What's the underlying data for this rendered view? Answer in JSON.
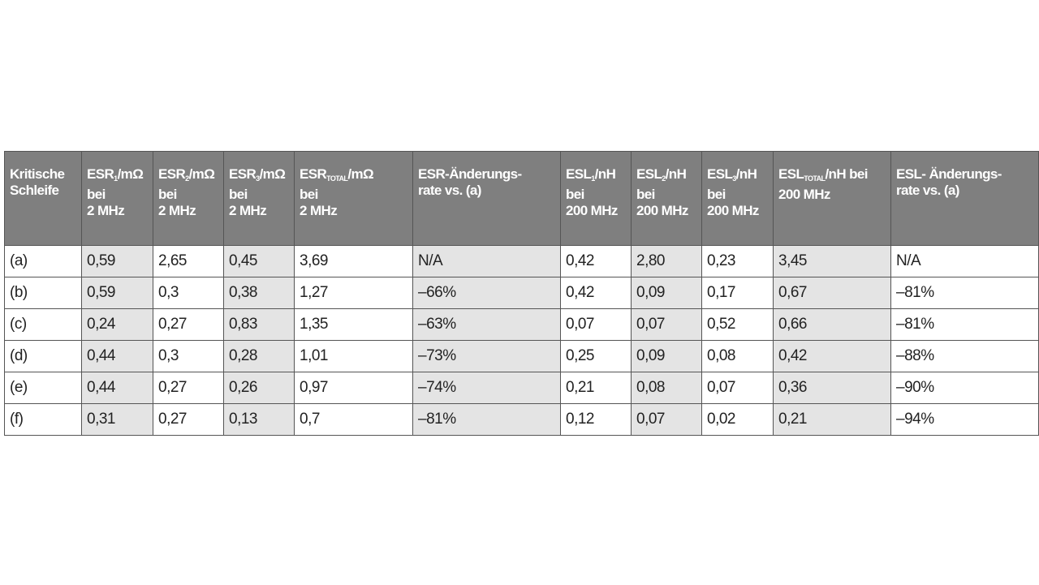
{
  "table": {
    "header": [
      {
        "lines": [
          "Kritische",
          "Schleife"
        ]
      },
      {
        "base": "ESR",
        "sub": "1",
        "suffix": "/mΩ",
        "lines": [
          "bei",
          "2 MHz"
        ]
      },
      {
        "base": "ESR",
        "sub": "2",
        "suffix": "/mΩ",
        "lines": [
          "bei",
          "2 MHz"
        ]
      },
      {
        "base": "ESR",
        "sub": "3",
        "suffix": "/mΩ",
        "lines": [
          "bei",
          "2 MHz"
        ]
      },
      {
        "base": "ESR",
        "sub": "TOTAL",
        "suffix": "/mΩ",
        "lines": [
          "bei",
          "2 MHz"
        ]
      },
      {
        "lines": [
          "ESR-Änderungs-",
          "rate vs. (a)"
        ]
      },
      {
        "base": "ESL",
        "sub": "1",
        "suffix": "/nH",
        "lines": [
          "bei",
          "200 MHz"
        ]
      },
      {
        "base": "ESL",
        "sub": "2",
        "suffix": "/nH",
        "lines": [
          "bei",
          "200 MHz"
        ]
      },
      {
        "base": "ESL",
        "sub": "3",
        "suffix": "/nH",
        "lines": [
          "bei",
          "200 MHz"
        ]
      },
      {
        "base": "ESL",
        "sub": "TOTAL",
        "suffix": "/nH bei",
        "lines": [
          "200 MHz"
        ]
      },
      {
        "lines": [
          "ESL- Änderungs-",
          "rate vs. (a)"
        ]
      }
    ],
    "rows": [
      [
        "(a)",
        "0,59",
        "2,65",
        "0,45",
        "3,69",
        "N/A",
        "0,42",
        "2,80",
        "0,23",
        "3,45",
        "N/A"
      ],
      [
        "(b)",
        "0,59",
        "0,3",
        "0,38",
        "1,27",
        "–66%",
        "0,42",
        "0,09",
        "0,17",
        "0,67",
        "–81%"
      ],
      [
        "(c)",
        "0,24",
        "0,27",
        "0,83",
        "1,35",
        "–63%",
        "0,07",
        "0,07",
        "0,52",
        "0,66",
        "–81%"
      ],
      [
        "(d)",
        "0,44",
        "0,3",
        "0,28",
        "1,01",
        "–73%",
        "0,25",
        "0,09",
        "0,08",
        "0,42",
        "–88%"
      ],
      [
        "(e)",
        "0,44",
        "0,27",
        "0,26",
        "0,97",
        "–74%",
        "0,21",
        "0,08",
        "0,07",
        "0,36",
        "–90%"
      ],
      [
        "(f)",
        "0,31",
        "0,27",
        "0,13",
        "0,7",
        "–81%",
        "0,12",
        "0,07",
        "0,02",
        "0,21",
        "–94%"
      ]
    ]
  }
}
